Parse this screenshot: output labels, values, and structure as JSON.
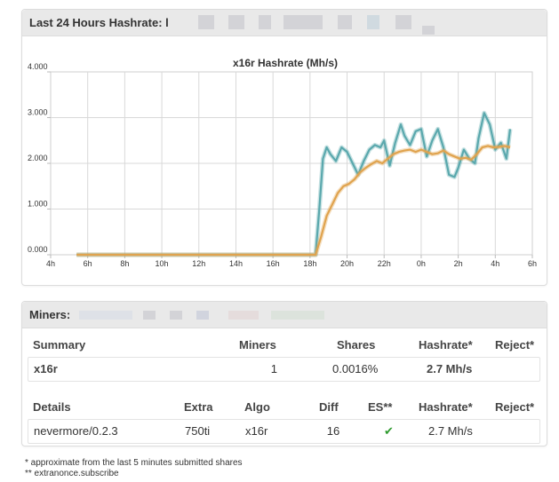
{
  "hashrate_panel": {
    "title": "Last 24 Hours Hashrate: l"
  },
  "chart_data": {
    "type": "line",
    "title": "x16r Hashrate (Mh/s)",
    "x_ticks": [
      "4h",
      "6h",
      "8h",
      "10h",
      "12h",
      "14h",
      "16h",
      "18h",
      "20h",
      "22h",
      "0h",
      "2h",
      "4h",
      "6h"
    ],
    "y_ticks": [
      "0.000",
      "1.000",
      "2.000",
      "3.000",
      "4.000"
    ],
    "ylim": [
      0,
      4
    ],
    "grid": true,
    "colors": {
      "series_a": "#5aa8ad",
      "series_b": "#e0a34e"
    },
    "series": [
      {
        "x": [
          5.4,
          18.3,
          18.5,
          18.7,
          18.9,
          19.1,
          19.4,
          19.7,
          20.0,
          20.3,
          20.6,
          20.9,
          21.2,
          21.5,
          21.8,
          22.0,
          22.3,
          22.6,
          22.9,
          23.1,
          23.4,
          23.7,
          24.0,
          24.3,
          24.6,
          24.9,
          25.2,
          25.5,
          25.8,
          26.0,
          26.3,
          26.6,
          26.9,
          27.1,
          27.4,
          27.7,
          28.0,
          28.3,
          28.6,
          28.8
        ],
        "y": [
          0,
          0,
          1.0,
          2.1,
          2.35,
          2.2,
          2.05,
          2.35,
          2.25,
          2.0,
          1.75,
          2.05,
          2.3,
          2.4,
          2.35,
          2.5,
          1.95,
          2.45,
          2.85,
          2.6,
          2.4,
          2.7,
          2.75,
          2.15,
          2.5,
          2.75,
          2.35,
          1.75,
          1.7,
          1.9,
          2.3,
          2.1,
          2.0,
          2.55,
          3.1,
          2.85,
          2.3,
          2.45,
          2.1,
          2.75
        ]
      },
      {
        "x": [
          5.4,
          18.3,
          18.6,
          18.9,
          19.2,
          19.5,
          19.8,
          20.1,
          20.4,
          20.7,
          21.0,
          21.3,
          21.6,
          21.9,
          22.2,
          22.5,
          22.8,
          23.1,
          23.4,
          23.7,
          24.0,
          24.3,
          24.6,
          24.9,
          25.2,
          25.5,
          25.8,
          26.1,
          26.4,
          26.7,
          27.0,
          27.3,
          27.6,
          27.9,
          28.2,
          28.5,
          28.8
        ],
        "y": [
          0,
          0,
          0.4,
          0.85,
          1.1,
          1.35,
          1.5,
          1.55,
          1.65,
          1.8,
          1.9,
          1.98,
          2.05,
          2.0,
          2.1,
          2.2,
          2.25,
          2.28,
          2.3,
          2.25,
          2.3,
          2.25,
          2.2,
          2.22,
          2.28,
          2.2,
          2.15,
          2.1,
          2.12,
          2.08,
          2.2,
          2.35,
          2.38,
          2.35,
          2.36,
          2.38,
          2.35
        ]
      }
    ]
  },
  "miners_panel": {
    "title": "Miners:",
    "summary_headers": {
      "summary": "Summary",
      "miners": "Miners",
      "shares": "Shares",
      "hashrate": "Hashrate*",
      "reject": "Reject*"
    },
    "summary_row": {
      "algo": "x16r",
      "miners": "1",
      "shares": "0.0016%",
      "hashrate": "2.7 Mh/s",
      "reject": ""
    },
    "details_headers": {
      "details": "Details",
      "extra": "Extra",
      "algo": "Algo",
      "diff": "Diff",
      "es": "ES**",
      "hashrate": "Hashrate*",
      "reject": "Reject*"
    },
    "details_row": {
      "client": "nevermore/0.2.3",
      "extra": "750ti",
      "algo": "x16r",
      "diff": "16",
      "es_icon": "checkmark-icon",
      "es_glyph": "✔",
      "hashrate": "2.7 Mh/s",
      "reject": ""
    }
  },
  "footnotes": {
    "line1": "* approximate from the last 5 minutes submitted shares",
    "line2": "** extranonce.subscribe"
  }
}
